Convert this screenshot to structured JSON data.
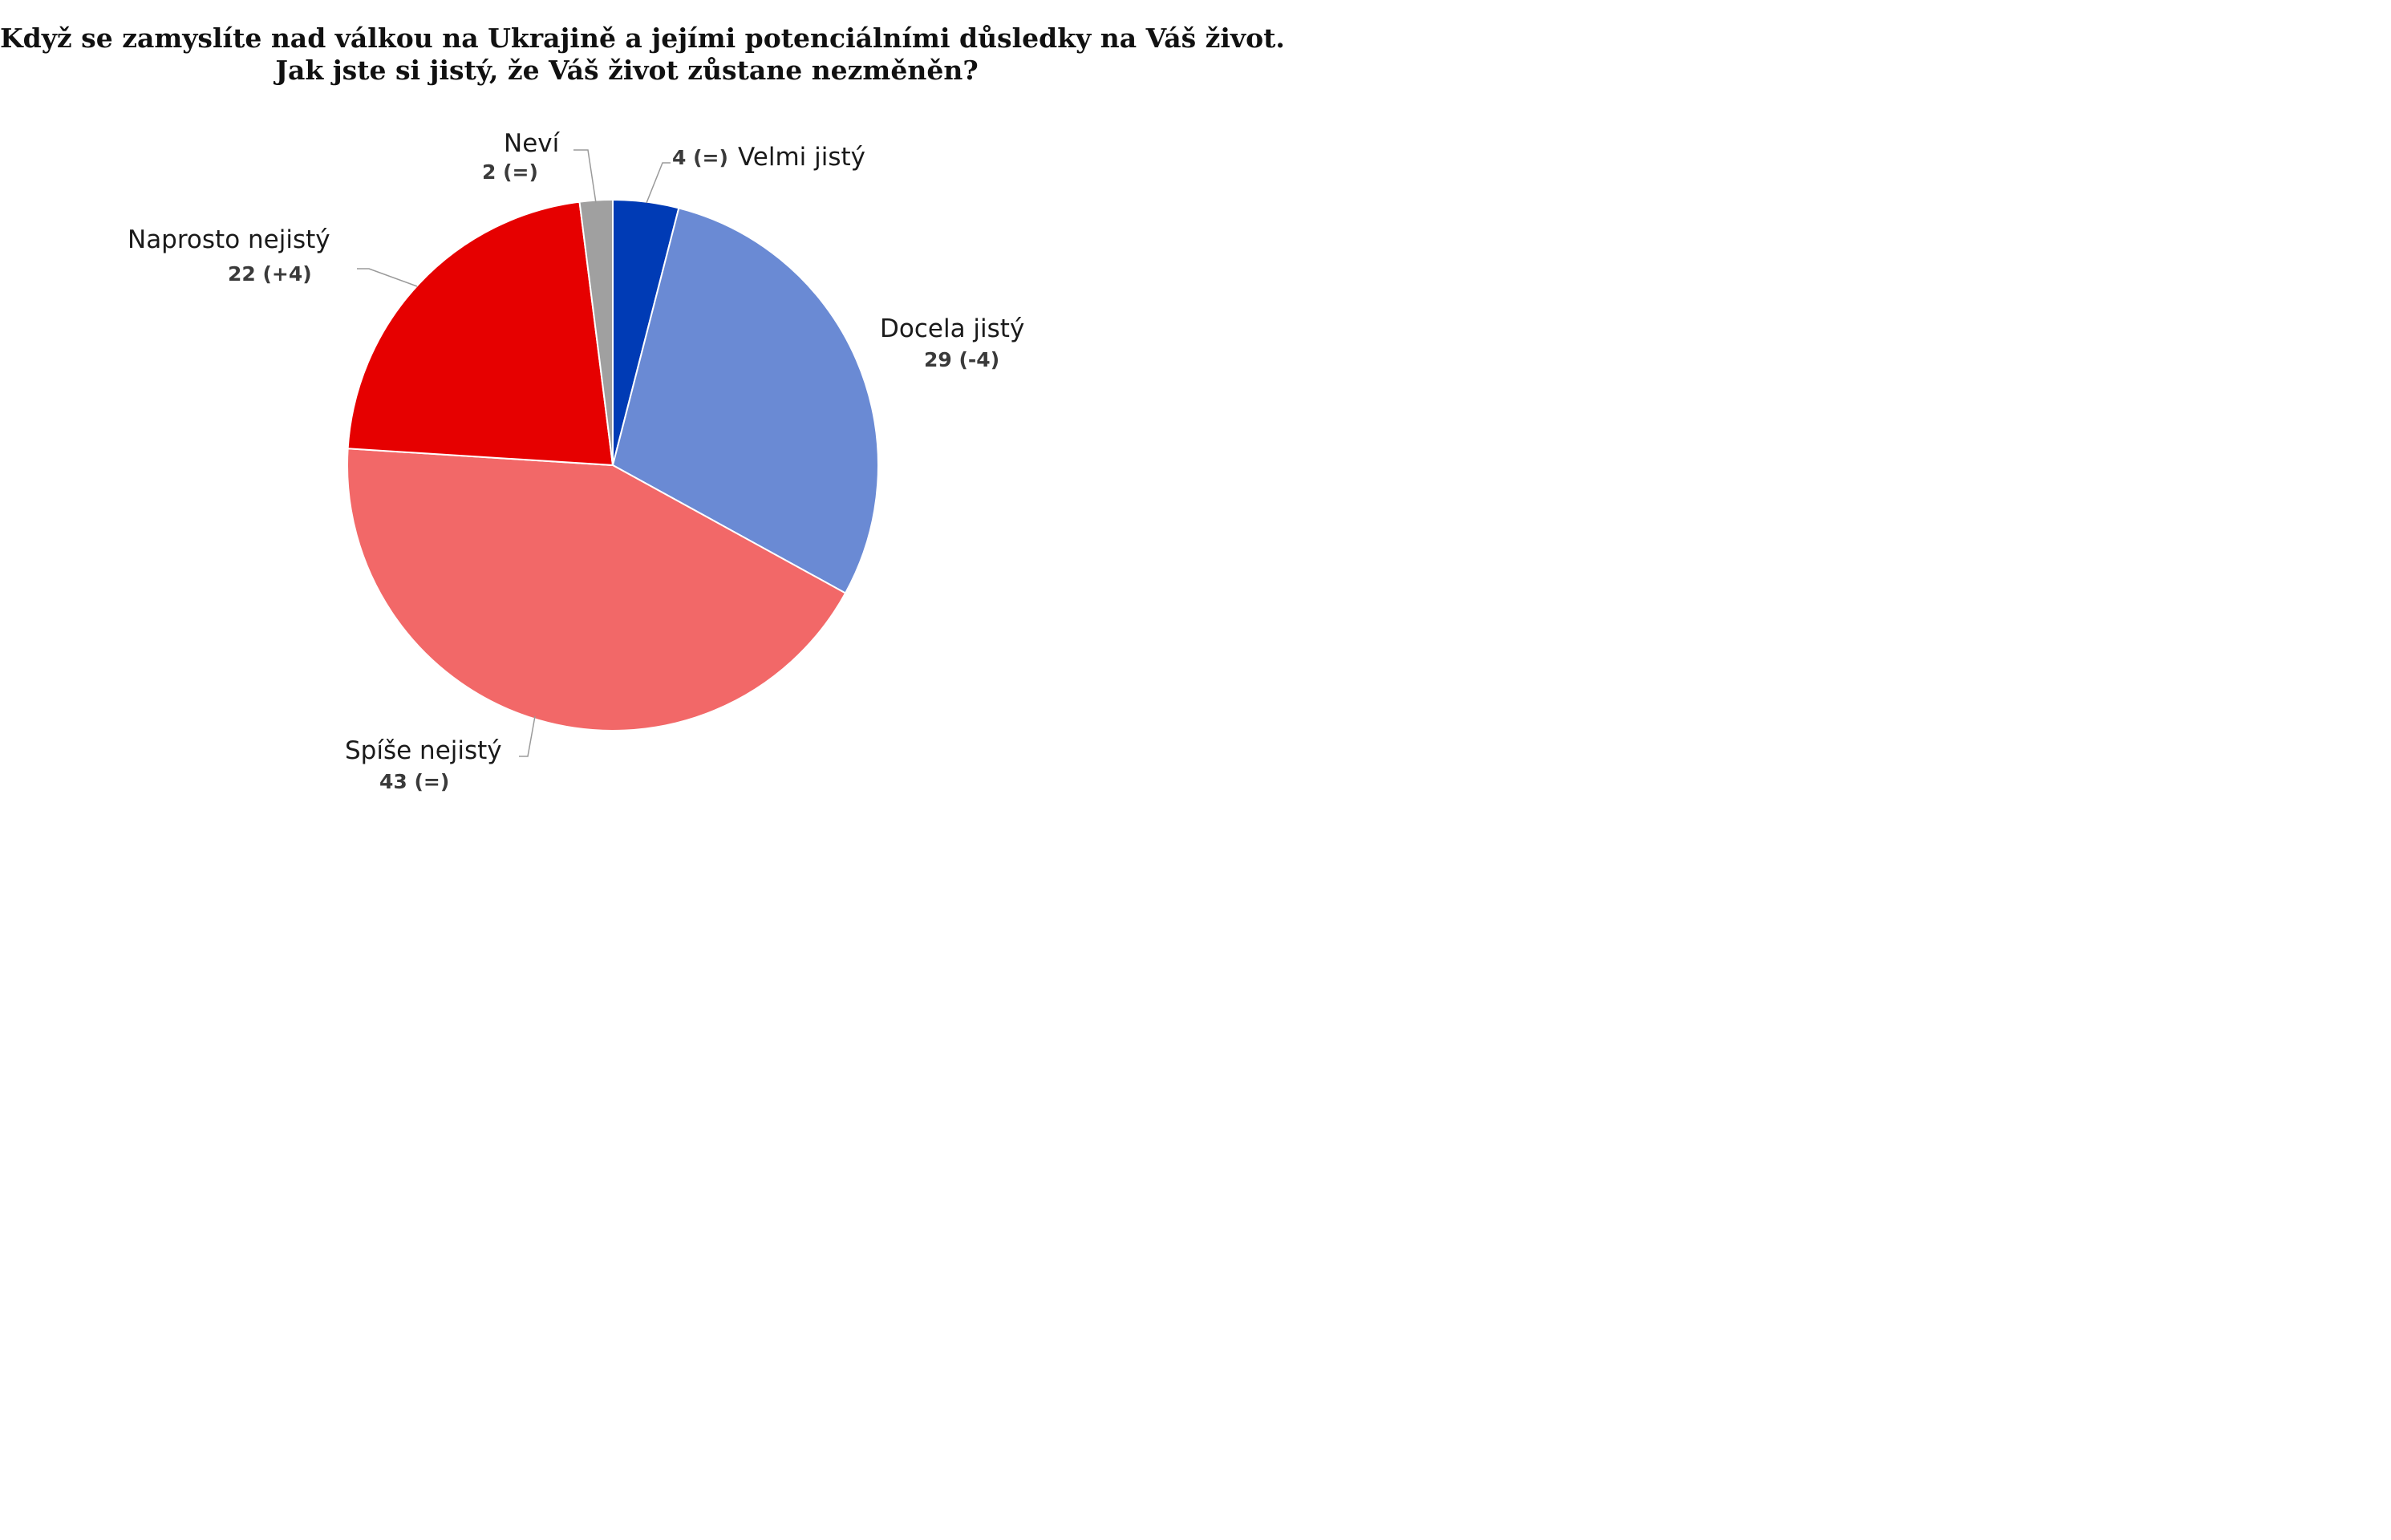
{
  "title": {
    "line1": "Když se zamyslíte nad válkou na Ukrajině a jejími potenciálními důsledky na Váš život.",
    "line2": "Jak jste si jistý, že Váš život zůstane nezměněn?"
  },
  "chart_data": {
    "type": "pie",
    "title": "Když se zamyslíte nad válkou na Ukrajině a jejími potenciálními důsledky na Váš život. Jak jste si jistý, že Váš život zůstane nezměněn?",
    "start": "12 o'clock, clockwise",
    "slices": [
      {
        "name": "Velmi jistý",
        "value": 4,
        "value_label": "4 (=)",
        "change": "=",
        "color": "#003bb5"
      },
      {
        "name": "Docela jistý",
        "value": 29,
        "value_label": "29 (-4)",
        "change": "-4",
        "color": "#6a8ad4"
      },
      {
        "name": "Spíše nejistý",
        "value": 43,
        "value_label": "43 (=)",
        "change": "=",
        "color": "#f26868"
      },
      {
        "name": "Naprosto nejistý",
        "value": 22,
        "value_label": "22 (+4)",
        "change": "+4",
        "color": "#e60000"
      },
      {
        "name": "Neví",
        "value": 2,
        "value_label": "2 (=)",
        "change": "=",
        "color": "#a0a0a0"
      }
    ]
  }
}
